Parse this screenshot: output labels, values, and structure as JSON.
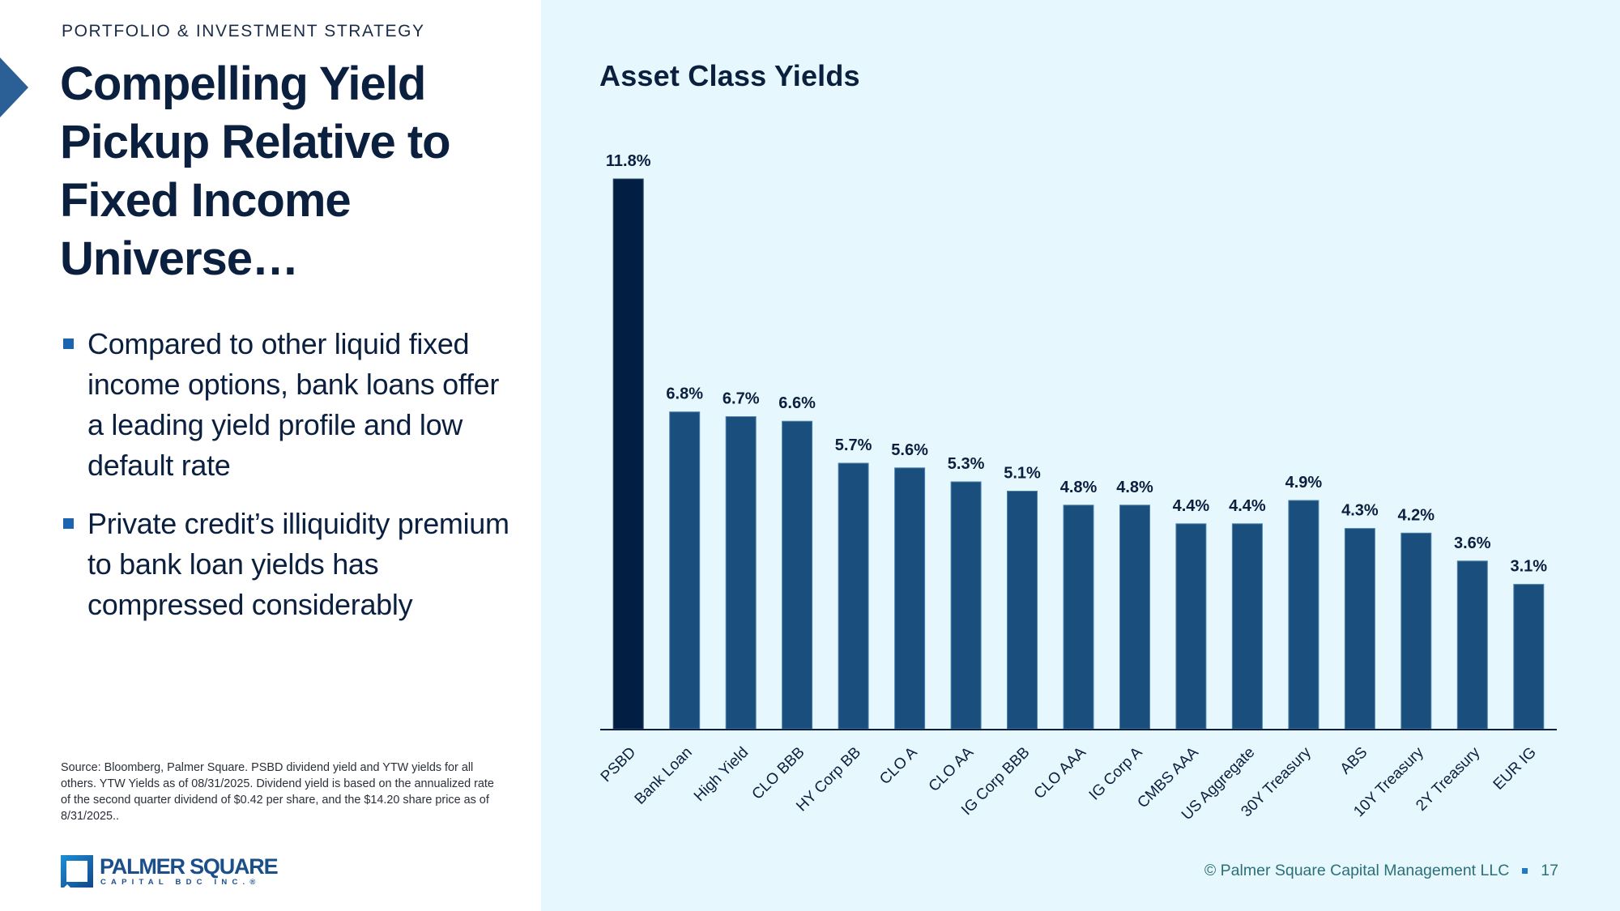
{
  "header": {
    "eyebrow": "PORTFOLIO & INVESTMENT STRATEGY",
    "title": "Compelling Yield Pickup Relative to Fixed Income Universe…",
    "chevron_icon": "chevron-right-icon"
  },
  "bullets": [
    {
      "text": "Compared to other liquid fixed income options, bank loans offer a leading yield profile and low default rate"
    },
    {
      "text": "Private credit’s illiquidity premium to bank loan yields has compressed considerably"
    }
  ],
  "footnote": "Source: Bloomberg, Palmer Square. PSBD dividend yield and YTW yields for all others. YTW Yields as of 08/31/2025. Dividend yield is based on the annualized rate of the second quarter dividend of $0.42 per share, and the $14.20 share price as of 8/31/2025..",
  "logo": {
    "name": "PALMER SQUARE",
    "sub": "CAPITAL BDC INC.®"
  },
  "footer": {
    "copyright": "© Palmer Square Capital Management LLC",
    "page_number": "17"
  },
  "colors": {
    "highlight_bar": "#021f43",
    "bar": "#1a4f7d",
    "panel_bg": "#e6f8fd",
    "accent": "#2a6096"
  },
  "chart_data": {
    "type": "bar",
    "title": "Asset Class Yields",
    "xlabel": "",
    "ylabel": "",
    "ylim": [
      0,
      11.8
    ],
    "grid": false,
    "legend": "none",
    "value_suffix": "%",
    "categories": [
      "PSBD",
      "Bank Loan",
      "High Yield",
      "CLO BBB",
      "HY Corp BB",
      "CLO A",
      "CLO AA",
      "IG Corp BBB",
      "CLO AAA",
      "IG Corp A",
      "CMBS AAA",
      "US Aggregate",
      "30Y Treasury",
      "ABS",
      "10Y Treasury",
      "2Y Treasury",
      "EUR IG"
    ],
    "values": [
      11.8,
      6.8,
      6.7,
      6.6,
      5.7,
      5.6,
      5.3,
      5.1,
      4.8,
      4.8,
      4.4,
      4.4,
      4.9,
      4.3,
      4.2,
      3.6,
      3.1
    ],
    "labels": [
      "11.8%",
      "6.8%",
      "6.7%",
      "6.6%",
      "5.7%",
      "5.6%",
      "5.3%",
      "5.1%",
      "4.8%",
      "4.8%",
      "4.4%",
      "4.4%",
      "4.9%",
      "4.3%",
      "4.2%",
      "3.6%",
      "3.1%"
    ],
    "highlight": "PSBD"
  }
}
